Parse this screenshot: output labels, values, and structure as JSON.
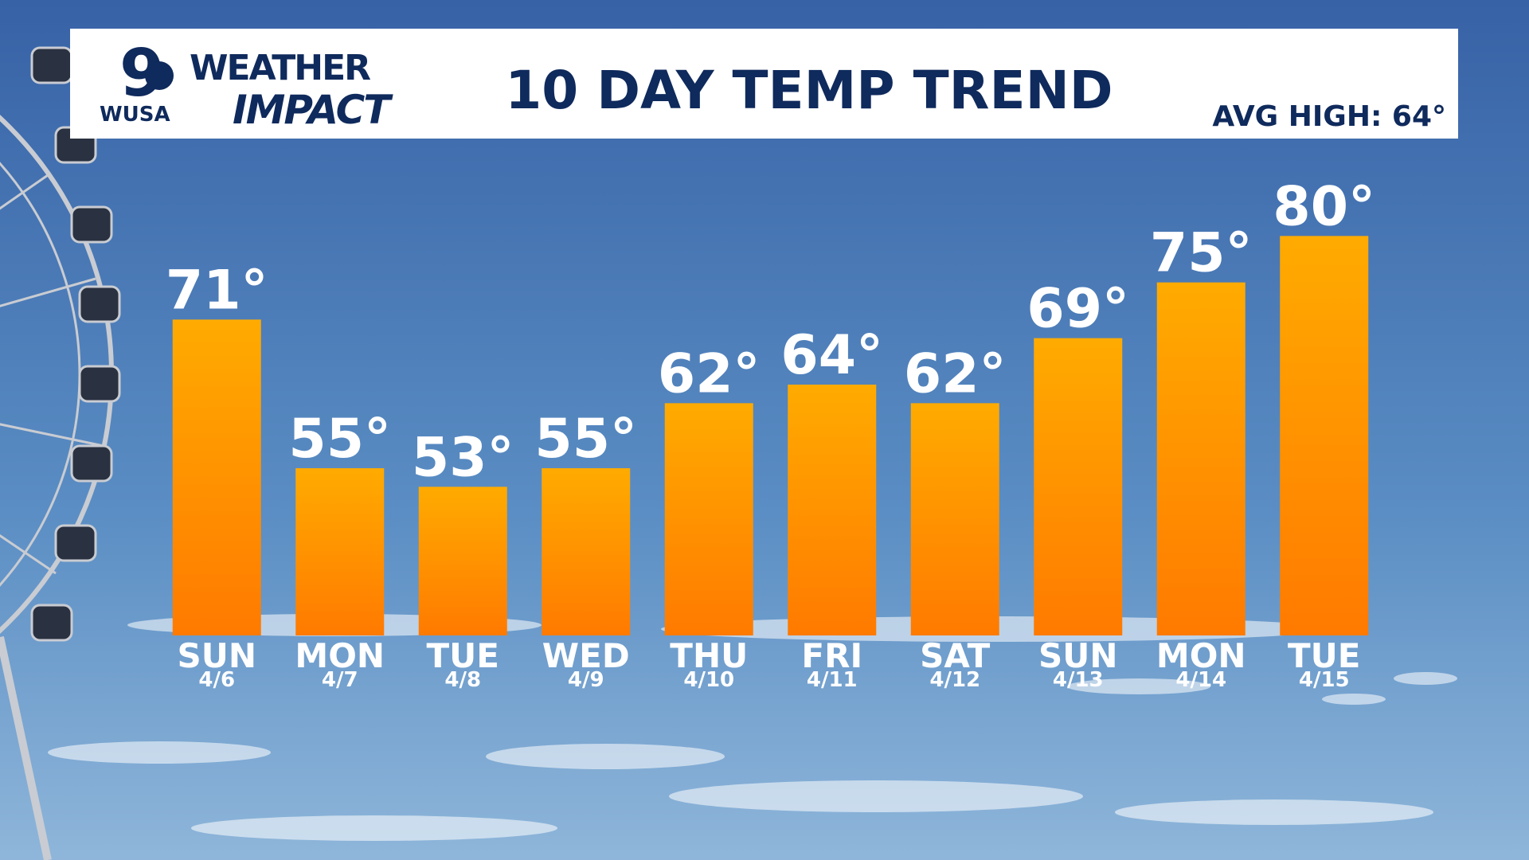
{
  "branding": {
    "channel": "9",
    "station": "WUSA",
    "line1": "WEATHER",
    "line2": "IMPACT"
  },
  "chart_data": {
    "type": "bar",
    "title": "10 DAY TEMP TREND",
    "annotation": "AVG HIGH: 64°",
    "categories": [
      "SUN",
      "MON",
      "TUE",
      "WED",
      "THU",
      "FRI",
      "SAT",
      "SUN",
      "MON",
      "TUE"
    ],
    "dates": [
      "4/6",
      "4/7",
      "4/8",
      "4/9",
      "4/10",
      "4/11",
      "4/12",
      "4/13",
      "4/14",
      "4/15"
    ],
    "values": [
      71,
      55,
      53,
      55,
      62,
      64,
      62,
      69,
      75,
      80
    ],
    "value_labels": [
      "71°",
      "55°",
      "53°",
      "55°",
      "62°",
      "64°",
      "62°",
      "69°",
      "75°",
      "80°"
    ],
    "color": [
      "#ffab00",
      "#ff7a00"
    ],
    "ylim": [
      37,
      85
    ],
    "grid": false
  }
}
